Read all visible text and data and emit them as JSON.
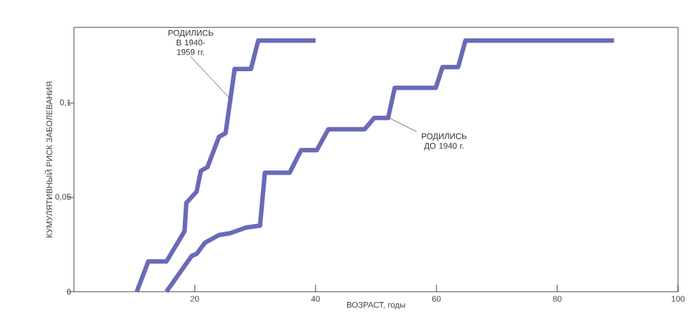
{
  "chart_data": {
    "type": "line",
    "xlabel": "ВОЗРАСТ, годы",
    "ylabel": "КУМУЛЯТИВНЫЙ РИСК ЗАБОЛЕВАНИЯ",
    "xlim": [
      0,
      100
    ],
    "ylim": [
      0,
      0.14
    ],
    "xticks": [
      20,
      40,
      60,
      80,
      100
    ],
    "yticks": [
      0,
      {
        "value": 0.05,
        "label": "0,05"
      },
      {
        "value": 0.1,
        "label": "0,1"
      }
    ],
    "grid": false,
    "legend": false,
    "marker": "none",
    "line_style": "solid",
    "series": [
      {
        "color": "#6a6ab8",
        "x": [
          10.4,
          12.3,
          15.3,
          18.3,
          18.6,
          20.3,
          21,
          22.1,
          24,
          25.1,
          26.6,
          29.3,
          30.5,
          40
        ],
        "values": [
          0,
          0.016,
          0.016,
          0.032,
          0.047,
          0.053,
          0.064,
          0.066,
          0.082,
          0.084,
          0.118,
          0.118,
          0.133,
          0.133
        ]
      },
      {
        "color": "#6a6ab8",
        "x": [
          15.3,
          19.5,
          20.3,
          21.7,
          24,
          25.9,
          28.5,
          30.8,
          31.6,
          35.7,
          37.6,
          40.2,
          42.1,
          48.1,
          49.7,
          52,
          53.1,
          59.9,
          61,
          63.6,
          64.8,
          89.4
        ],
        "values": [
          0,
          0.019,
          0.02,
          0.026,
          0.03,
          0.031,
          0.034,
          0.035,
          0.063,
          0.063,
          0.075,
          0.075,
          0.086,
          0.086,
          0.092,
          0.092,
          0.108,
          0.108,
          0.119,
          0.119,
          0.133,
          0.133
        ]
      }
    ],
    "annotations": [
      {
        "text": "РОДИЛИСЬ В 1940-1959 гг.",
        "x": 25.9,
        "y": 0.102
      },
      {
        "text": "РОДИЛИСЬ ДО 1940 г.",
        "x": 52.2,
        "y": 0.092
      }
    ]
  }
}
